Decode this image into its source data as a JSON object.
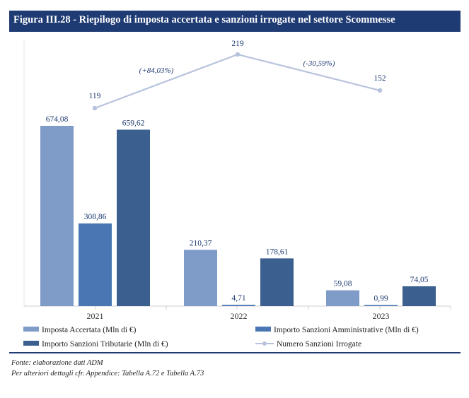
{
  "figure": {
    "title": "Figura III.28 - Riepilogo di imposta accertata e sanzioni irrogate nel settore Scommesse"
  },
  "footnotes": {
    "source": "Fonte: elaborazione dati ADM",
    "detail": "Per ulteriori dettagli cfr. Appendice: Tabella A.72 e Tabella A.73"
  },
  "colors": {
    "title_bar": "#1f3b73",
    "imposta": "#7f9cc9",
    "amministrative": "#4a77b3",
    "tributarie": "#3b5f8f",
    "numero": "#b7c3dc",
    "label": "#1f3b73"
  },
  "chart_data": {
    "type": "bar",
    "categories": [
      "2021",
      "2022",
      "2023"
    ],
    "series": [
      {
        "name": "Imposta Accertata (Mln di €)",
        "type": "bar",
        "values": [
          674.08,
          210.37,
          59.08
        ],
        "labels": [
          "674,08",
          "210,37",
          "59,08"
        ]
      },
      {
        "name": "Importo Sanzioni Amministrative (Mln di €)",
        "type": "bar",
        "values": [
          308.86,
          4.71,
          0.99
        ],
        "labels": [
          "308,86",
          "4,71",
          "0,99"
        ]
      },
      {
        "name": "Importo Sanzioni Tributarie (Mln di €)",
        "type": "bar",
        "values": [
          659.62,
          178.61,
          74.05
        ],
        "labels": [
          "659,62",
          "178,61",
          "74,05"
        ]
      },
      {
        "name": "Numero Sanzioni Irrogate",
        "type": "line",
        "values": [
          119,
          219,
          152
        ],
        "labels": [
          "119",
          "219",
          "152"
        ]
      }
    ],
    "annotations": [
      "(+84,03%)",
      "(-30,59%)"
    ],
    "legend_labels": [
      "Imposta Accertata (Mln di €)",
      "Importo Sanzioni Amministrative (Mln di €)",
      "Importo Sanzioni Tributarie (Mln di €)",
      "Numero Sanzioni Irrogate"
    ],
    "legend_position": "bottom",
    "grid": false
  }
}
